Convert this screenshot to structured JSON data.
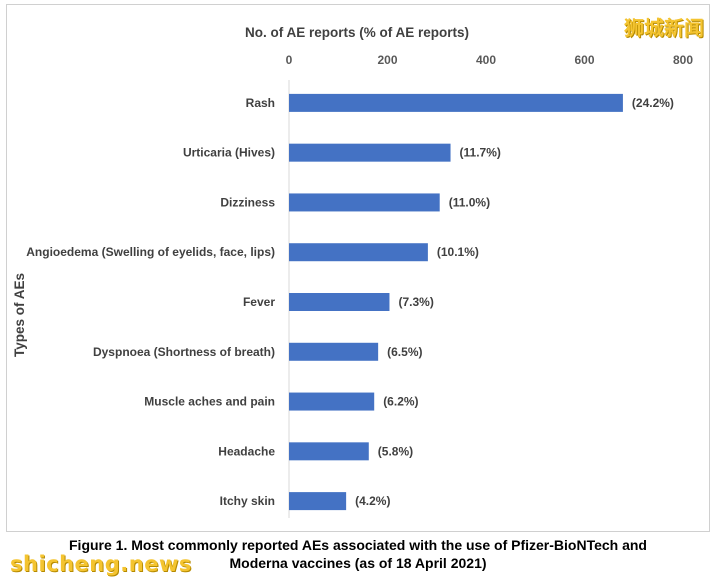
{
  "watermark_top": "狮城新闻",
  "watermark_bottom": "shicheng.news",
  "caption": {
    "line1": "Figure 1. Most commonly reported AEs associated with the use of Pfizer-BioNTech and",
    "line2": "Moderna vaccines (as of 18 April 2021)"
  },
  "chart_data": {
    "type": "bar",
    "orientation": "horizontal",
    "xlabel": "No. of AE reports (% of AE reports)",
    "ylabel": "Types of AEs",
    "xlim": [
      0,
      800
    ],
    "xticks": [
      "0",
      "200",
      "400",
      "600",
      "800"
    ],
    "x_axis_position": "top",
    "grid": false,
    "bar_color": "#4472c4",
    "categories": [
      "Rash",
      "Urticaria (Hives)",
      "Dizziness",
      "Angioedema (Swelling of eyelids, face, lips)",
      "Fever",
      "Dyspnoea (Shortness of breath)",
      "Muscle aches and pain",
      "Headache",
      "Itchy skin"
    ],
    "values": [
      678,
      328,
      306,
      282,
      204,
      181,
      173,
      162,
      116
    ],
    "data_labels": [
      "(24.2%)",
      "(11.7%)",
      "(11.0%)",
      "(10.1%)",
      "(7.3%)",
      "(6.5%)",
      "(6.2%)",
      "(5.8%)",
      "(4.2%)"
    ]
  }
}
